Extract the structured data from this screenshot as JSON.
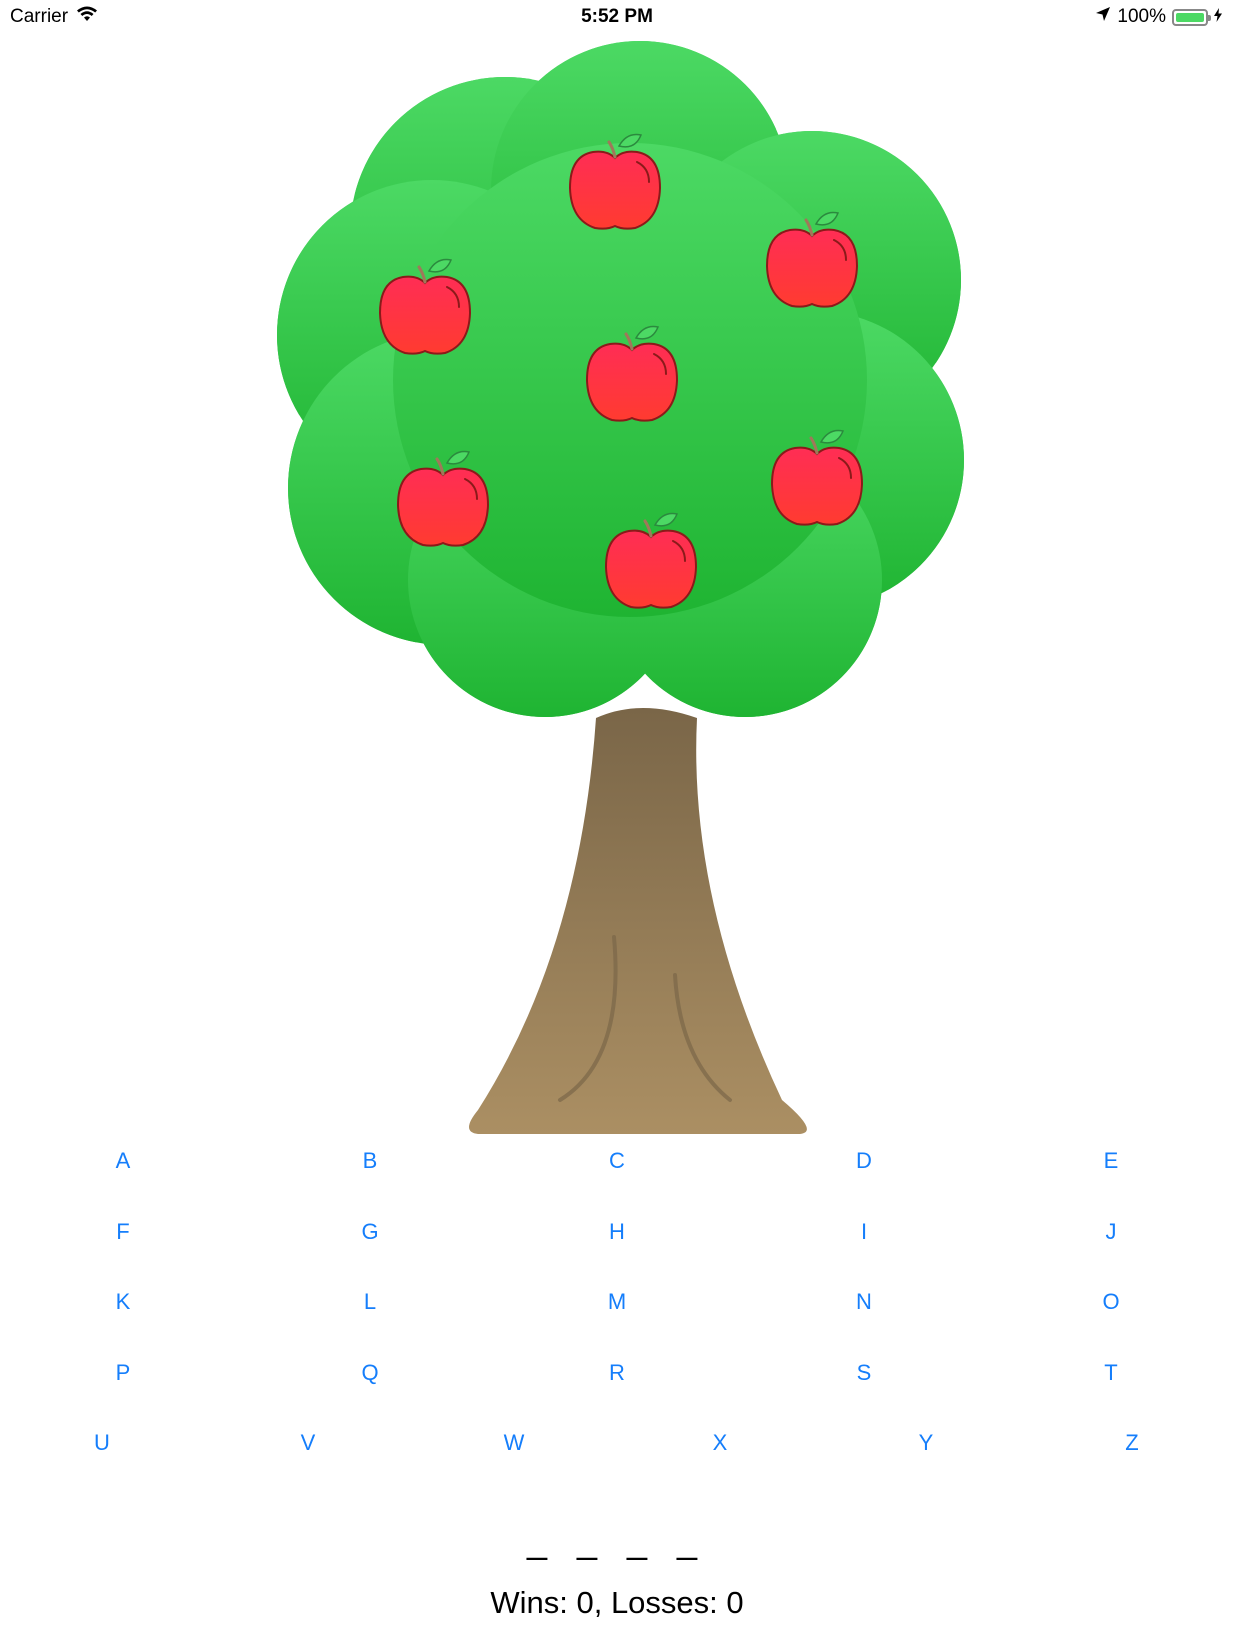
{
  "status_bar": {
    "carrier": "Carrier",
    "time": "5:52 PM",
    "battery_percent": "100%",
    "battery_level": 1.0,
    "icons": [
      "wifi-icon",
      "location-arrow-icon",
      "battery-icon",
      "charging-bolt-icon"
    ]
  },
  "tree": {
    "apples_count": 7,
    "colors": {
      "foliage_top": "#4cd964",
      "foliage_bottom": "#1fb432",
      "trunk_top": "#7a6648",
      "trunk_bottom": "#ab8f63",
      "apple": "#ff2d55",
      "apple_outline": "#8b1a1a",
      "leaf": "#4cd964"
    }
  },
  "keyboard": {
    "accent_color": "#157efb",
    "rows": [
      [
        "A",
        "B",
        "C",
        "D",
        "E"
      ],
      [
        "F",
        "G",
        "H",
        "I",
        "J"
      ],
      [
        "K",
        "L",
        "M",
        "N",
        "O"
      ],
      [
        "P",
        "Q",
        "R",
        "S",
        "T"
      ],
      [
        "U",
        "V",
        "W",
        "X",
        "Y",
        "Z"
      ]
    ]
  },
  "game": {
    "word": "_ _ _ _",
    "score_text": "Wins: 0, Losses: 0"
  }
}
